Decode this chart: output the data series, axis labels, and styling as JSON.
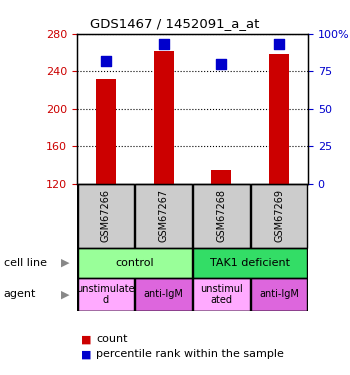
{
  "title": "GDS1467 / 1452091_a_at",
  "samples": [
    "GSM67266",
    "GSM67267",
    "GSM67268",
    "GSM67269"
  ],
  "counts": [
    232,
    262,
    135,
    258
  ],
  "percentiles": [
    82,
    93,
    80,
    93
  ],
  "ylim_left": [
    120,
    280
  ],
  "ylim_right": [
    0,
    100
  ],
  "yticks_left": [
    120,
    160,
    200,
    240,
    280
  ],
  "yticks_right": [
    0,
    25,
    50,
    75,
    100
  ],
  "ytick_labels_right": [
    "0",
    "25",
    "50",
    "75",
    "100%"
  ],
  "bar_color": "#cc0000",
  "dot_color": "#0000cc",
  "cell_line_row": [
    {
      "label": "control",
      "span": [
        0,
        2
      ],
      "color": "#99ff99"
    },
    {
      "label": "TAK1 deficient",
      "span": [
        2,
        4
      ],
      "color": "#33dd66"
    }
  ],
  "agent_row": [
    {
      "label": "unstimulate\nd",
      "span": [
        0,
        1
      ],
      "color": "#ffaaff"
    },
    {
      "label": "anti-IgM",
      "span": [
        1,
        2
      ],
      "color": "#dd66dd"
    },
    {
      "label": "unstimul\nated",
      "span": [
        2,
        3
      ],
      "color": "#ffaaff"
    },
    {
      "label": "anti-IgM",
      "span": [
        3,
        4
      ],
      "color": "#dd66dd"
    }
  ],
  "sample_bg_color": "#cccccc",
  "left_label_color": "#cc0000",
  "right_label_color": "#0000cc",
  "bar_width": 0.35,
  "dot_size": 50,
  "legend_red_label": "count",
  "legend_blue_label": "percentile rank within the sample"
}
